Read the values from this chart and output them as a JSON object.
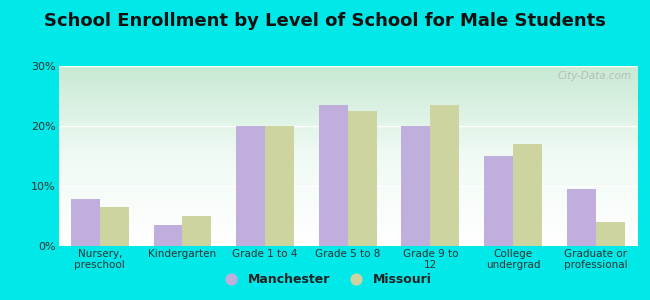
{
  "title": "School Enrollment by Level of School for Male Students",
  "categories": [
    "Nursery,\npreschool",
    "Kindergarten",
    "Grade 1 to 4",
    "Grade 5 to 8",
    "Grade 9 to\n12",
    "College\nundergrad",
    "Graduate or\nprofessional"
  ],
  "manchester": [
    7.8,
    3.5,
    20.0,
    23.5,
    20.0,
    15.0,
    9.5
  ],
  "missouri": [
    6.5,
    5.0,
    20.0,
    22.5,
    23.5,
    17.0,
    4.0
  ],
  "manchester_color": "#c0aedd",
  "missouri_color": "#cdd4a0",
  "background_color": "#00e8e8",
  "plot_bg_top": "#ffffff",
  "plot_bg_bottom": "#d0eedc",
  "bar_width": 0.35,
  "ylim": [
    0,
    30
  ],
  "yticks": [
    0,
    10,
    20,
    30
  ],
  "ytick_labels": [
    "0%",
    "10%",
    "20%",
    "30%"
  ],
  "legend_labels": [
    "Manchester",
    "Missouri"
  ],
  "title_fontsize": 13,
  "watermark": "City-Data.com"
}
